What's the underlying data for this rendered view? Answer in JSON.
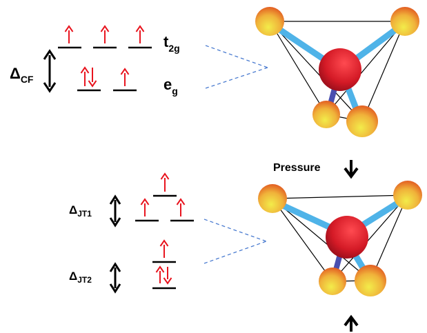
{
  "top": {
    "orbital_upper": {
      "base": "t",
      "sub": "2g"
    },
    "orbital_lower": {
      "base": "e",
      "sub": "g"
    },
    "gap_label": {
      "base": "Δ",
      "sub": "CF"
    },
    "upper_electrons": [
      "up",
      "up",
      "up"
    ],
    "lower_electrons": [
      "up-down",
      "up"
    ]
  },
  "bottom": {
    "gap1_label": {
      "base": "Δ",
      "sub": "JT1"
    },
    "gap2_label": {
      "base": "Δ",
      "sub": "JT2"
    },
    "upper_group_electrons": [
      "up",
      "up",
      "up"
    ],
    "lower_group_electrons": [
      "up",
      "up-down"
    ],
    "pressure_label": "Pressure"
  },
  "colors": {
    "electron_arrow": "#e8141e",
    "level_line": "#000000",
    "connector_dash": "#4a7bd0",
    "bond": "#4fb3e8",
    "bond_dark": "#4a4fb0",
    "central_atom": "#d81e28",
    "ligand_atom_top": "#e86a1e",
    "ligand_atom_bottom": "#f0e040"
  }
}
